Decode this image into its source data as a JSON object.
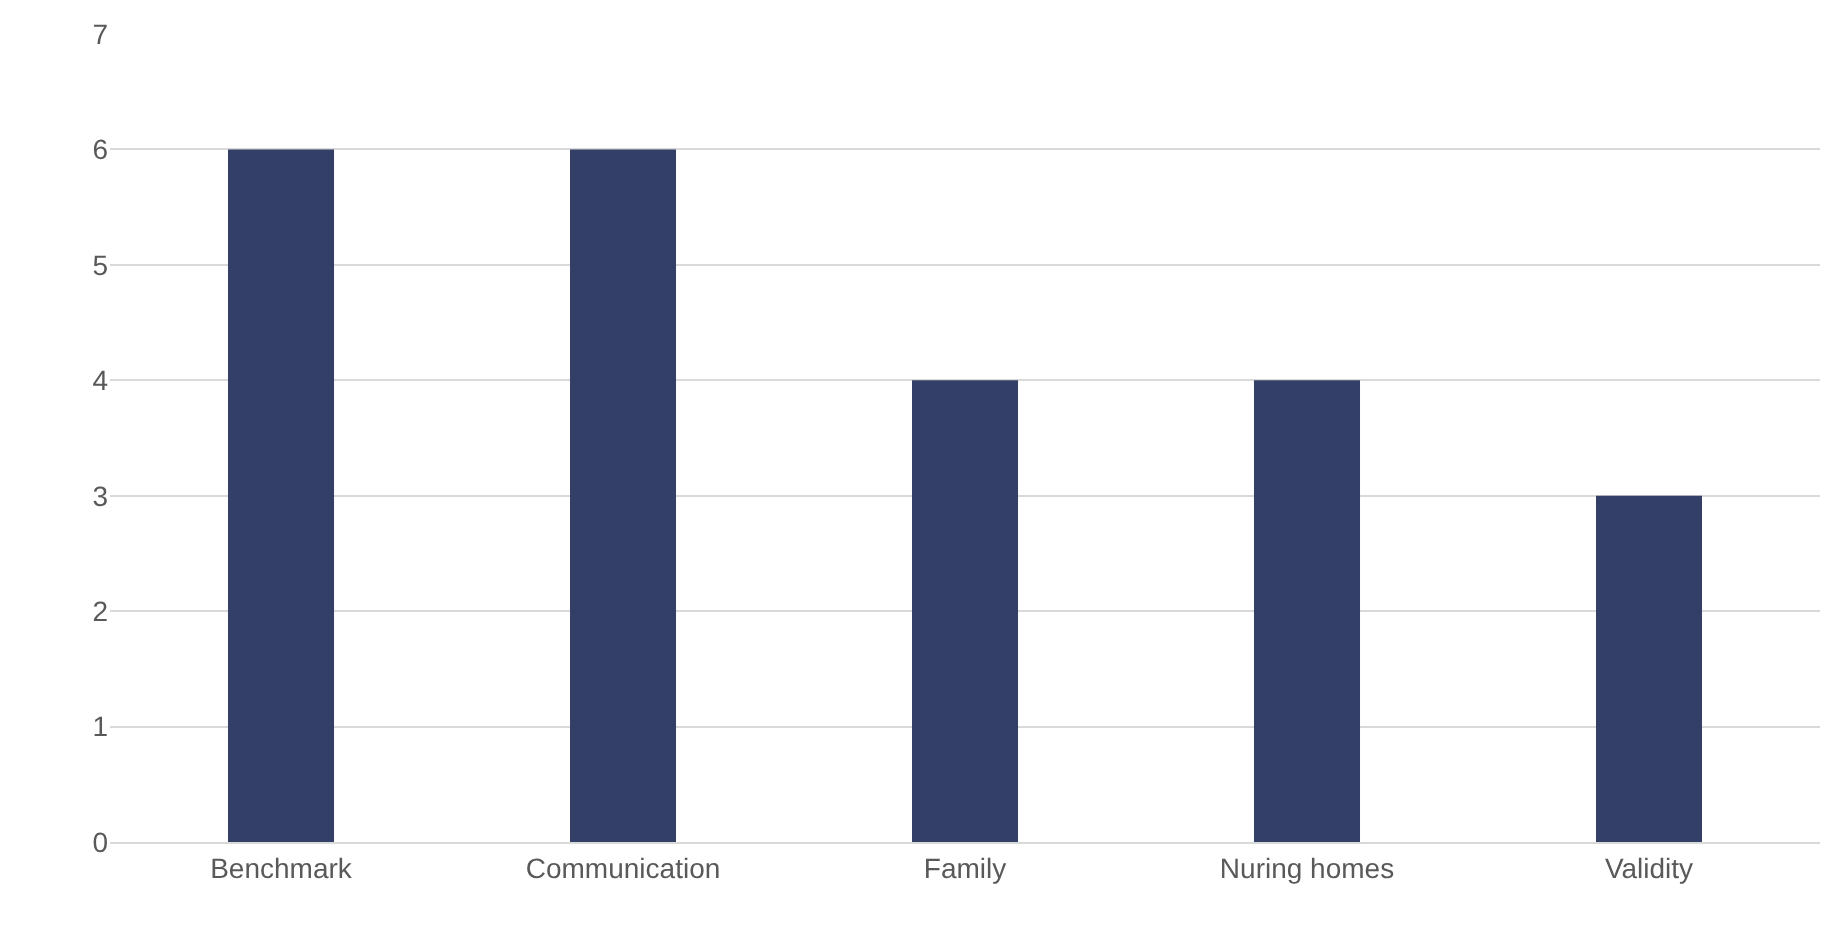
{
  "chart_data": {
    "type": "bar",
    "categories": [
      "Benchmark",
      "Communication",
      "Family",
      "Nuring homes",
      "Validity"
    ],
    "values": [
      6,
      6,
      4,
      4,
      3
    ],
    "color": "#333f66",
    "ylim": [
      0,
      7
    ],
    "yticks": [
      0,
      1,
      2,
      3,
      4,
      5,
      6,
      7
    ],
    "grid": "y"
  }
}
